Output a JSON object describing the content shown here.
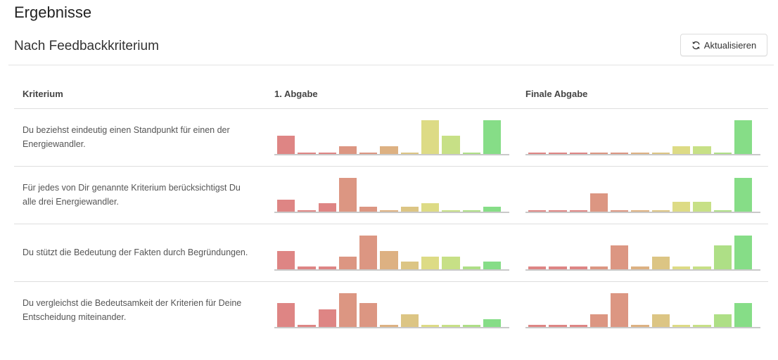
{
  "page": {
    "title": "Ergebnisse"
  },
  "section": {
    "title": "Nach Feedbackkriterium",
    "refresh_label": "Aktualisieren"
  },
  "table": {
    "headers": {
      "criterion": "Kriterium",
      "first": "1. Abgabe",
      "final": "Finale Abgabe"
    }
  },
  "bar_colors": [
    "#de8584",
    "#de8584",
    "#de8584",
    "#dc9682",
    "#dc9682",
    "#ddb182",
    "#dcc584",
    "#dddb85",
    "#c7e086",
    "#aedf86",
    "#86dd87"
  ],
  "rows": [
    {
      "criterion": "Du beziehst eindeutig einen Standpunkt für einen der Energiewandler.",
      "first": [
        0.55,
        0.05,
        0.05,
        0.22,
        0.05,
        0.22,
        0.05,
        1.0,
        0.55,
        0.05,
        1.0
      ],
      "final": [
        0.05,
        0.05,
        0.05,
        0.05,
        0.05,
        0.05,
        0.05,
        0.22,
        0.22,
        0.05,
        1.0
      ]
    },
    {
      "criterion": "Für jedes von Dir genannte Kriterium berücksichtigst Du alle drei Energiewandler.",
      "first": [
        0.35,
        0.05,
        0.25,
        1.0,
        0.15,
        0.05,
        0.15,
        0.25,
        0.05,
        0.05,
        0.15
      ],
      "final": [
        0.05,
        0.05,
        0.05,
        0.55,
        0.05,
        0.05,
        0.05,
        0.3,
        0.3,
        0.05,
        1.0
      ]
    },
    {
      "criterion": "Du stützt die Bedeutung der Fakten durch Begründungen.",
      "first": [
        0.55,
        0.08,
        0.08,
        0.38,
        1.0,
        0.55,
        0.22,
        0.38,
        0.38,
        0.08,
        0.22
      ],
      "final": [
        0.08,
        0.08,
        0.08,
        0.08,
        0.7,
        0.08,
        0.38,
        0.08,
        0.08,
        0.7,
        1.0
      ]
    },
    {
      "criterion": "Du vergleichst die Bedeutsamkeit der Kriterien für Deine Entscheidung miteinander.",
      "first": [
        0.7,
        0.06,
        0.52,
        1.0,
        0.7,
        0.06,
        0.38,
        0.06,
        0.06,
        0.06,
        0.22
      ],
      "final": [
        0.06,
        0.06,
        0.06,
        0.38,
        1.0,
        0.06,
        0.38,
        0.06,
        0.06,
        0.38,
        0.7
      ]
    }
  ]
}
